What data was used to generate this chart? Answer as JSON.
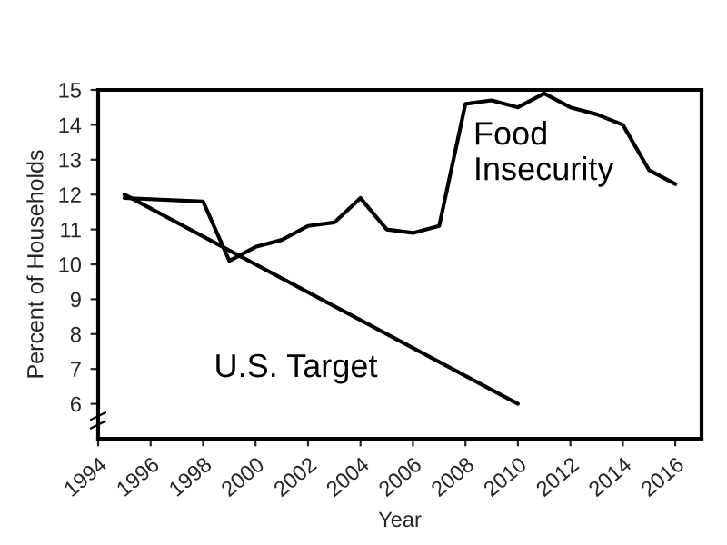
{
  "chart_data": {
    "type": "line",
    "xlabel": "Year",
    "ylabel": "Percent of Households",
    "x": [
      1995,
      1998,
      1999,
      2000,
      2001,
      2002,
      2003,
      2004,
      2005,
      2006,
      2007,
      2008,
      2009,
      2010,
      2011,
      2012,
      2013,
      2014,
      2015,
      2016
    ],
    "series": [
      {
        "name": "Food Insecurity",
        "color": "#000000",
        "values": [
          11.9,
          11.8,
          10.1,
          10.5,
          10.7,
          11.1,
          11.2,
          11.9,
          11.0,
          10.9,
          11.1,
          14.6,
          14.7,
          14.5,
          14.9,
          14.5,
          14.3,
          14.0,
          12.7,
          12.3
        ]
      },
      {
        "name": "U.S. Target",
        "color": "#000000",
        "x": [
          1995,
          2010
        ],
        "values": [
          12,
          6
        ]
      }
    ],
    "xlim": [
      1994,
      2017
    ],
    "xticks": [
      1994,
      1996,
      1998,
      2000,
      2002,
      2004,
      2006,
      2008,
      2010,
      2012,
      2014,
      2016
    ],
    "ylim": [
      5,
      15
    ],
    "yticks": [
      6,
      7,
      8,
      9,
      10,
      11,
      12,
      13,
      14,
      15
    ],
    "grid": false,
    "legend": false,
    "marker": "none",
    "line_style": "solid"
  }
}
